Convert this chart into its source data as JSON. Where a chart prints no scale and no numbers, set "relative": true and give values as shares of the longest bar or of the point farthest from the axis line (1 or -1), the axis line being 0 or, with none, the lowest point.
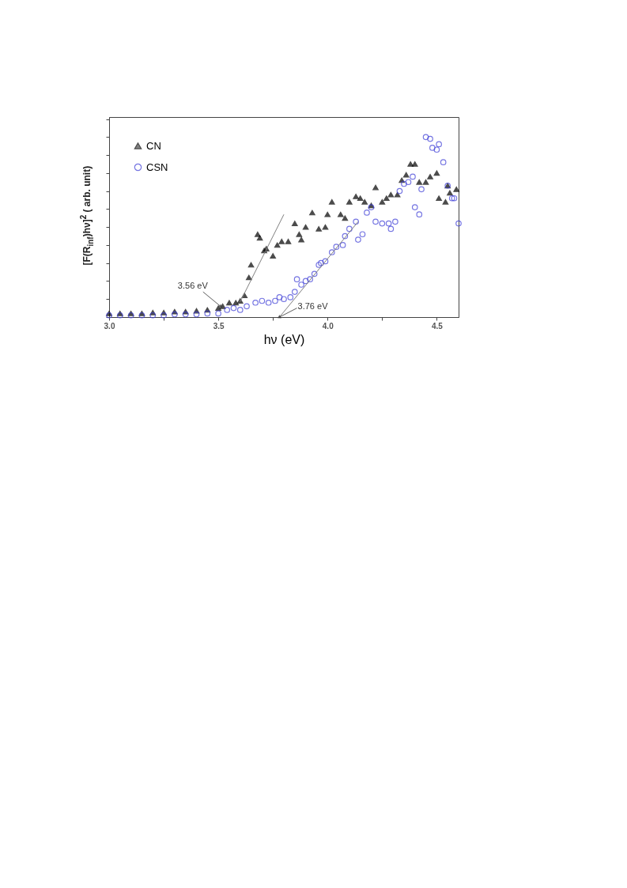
{
  "chart_data": {
    "type": "scatter",
    "relative": true,
    "xlabel": "hν (eV)",
    "ylabel": "[F(R$_{inf}$)hν]$^{2}$ ( arb. unit)",
    "xlim": [
      3.0,
      4.6
    ],
    "xticks": [
      {
        "value": 3.0,
        "label": "3.0"
      },
      {
        "value": 3.25,
        "label": null
      },
      {
        "value": 3.5,
        "label": "3.5"
      },
      {
        "value": 3.75,
        "label": null
      },
      {
        "value": 4.0,
        "label": "4.0"
      },
      {
        "value": 4.25,
        "label": null
      },
      {
        "value": 4.5,
        "label": "4.5"
      }
    ],
    "tick_labels": "x",
    "grid": false,
    "legend": "top left",
    "series": [
      {
        "name": "CN",
        "color": "#000000",
        "marker": "triangle",
        "x": [
          3.0,
          3.05,
          3.1,
          3.15,
          3.2,
          3.25,
          3.3,
          3.35,
          3.4,
          3.45,
          3.5,
          3.52,
          3.55,
          3.58,
          3.6,
          3.62,
          3.64,
          3.65,
          3.68,
          3.69,
          3.71,
          3.72,
          3.75,
          3.77,
          3.79,
          3.82,
          3.85,
          3.87,
          3.88,
          3.9,
          3.93,
          3.96,
          3.99,
          4.0,
          4.02,
          4.06,
          4.08,
          4.1,
          4.13,
          4.15,
          4.17,
          4.2,
          4.22,
          4.25,
          4.27,
          4.29,
          4.32,
          4.34,
          4.36,
          4.38,
          4.4,
          4.42,
          4.45,
          4.47,
          4.5,
          4.51,
          4.54,
          4.55,
          4.56,
          4.59
        ],
        "values": [
          0.02,
          0.02,
          0.02,
          0.02,
          0.025,
          0.025,
          0.03,
          0.03,
          0.035,
          0.04,
          0.05,
          0.06,
          0.08,
          0.08,
          0.09,
          0.12,
          0.22,
          0.29,
          0.46,
          0.44,
          0.37,
          0.38,
          0.34,
          0.4,
          0.42,
          0.42,
          0.52,
          0.46,
          0.43,
          0.5,
          0.58,
          0.49,
          0.5,
          0.57,
          0.64,
          0.57,
          0.55,
          0.64,
          0.67,
          0.66,
          0.64,
          0.62,
          0.72,
          0.64,
          0.66,
          0.68,
          0.68,
          0.76,
          0.79,
          0.85,
          0.85,
          0.75,
          0.75,
          0.78,
          0.8,
          0.66,
          0.64,
          0.73,
          0.69,
          0.71
        ]
      },
      {
        "name": "CSN",
        "color": "#3b3bd6",
        "marker": "circle",
        "x": [
          3.0,
          3.05,
          3.1,
          3.15,
          3.2,
          3.25,
          3.3,
          3.35,
          3.4,
          3.45,
          3.5,
          3.54,
          3.57,
          3.6,
          3.63,
          3.67,
          3.7,
          3.73,
          3.76,
          3.78,
          3.8,
          3.83,
          3.85,
          3.86,
          3.88,
          3.9,
          3.92,
          3.94,
          3.96,
          3.97,
          3.99,
          4.02,
          4.04,
          4.07,
          4.08,
          4.1,
          4.13,
          4.14,
          4.16,
          4.18,
          4.2,
          4.22,
          4.25,
          4.28,
          4.29,
          4.31,
          4.33,
          4.35,
          4.37,
          4.39,
          4.4,
          4.42,
          4.43,
          4.45,
          4.47,
          4.48,
          4.5,
          4.51,
          4.53,
          4.55,
          4.57,
          4.58,
          4.6
        ],
        "values": [
          0.01,
          0.01,
          0.01,
          0.01,
          0.01,
          0.01,
          0.015,
          0.015,
          0.015,
          0.02,
          0.02,
          0.04,
          0.05,
          0.04,
          0.06,
          0.08,
          0.09,
          0.08,
          0.09,
          0.11,
          0.1,
          0.11,
          0.14,
          0.21,
          0.18,
          0.2,
          0.21,
          0.24,
          0.29,
          0.3,
          0.31,
          0.36,
          0.39,
          0.4,
          0.45,
          0.49,
          0.53,
          0.43,
          0.46,
          0.58,
          0.61,
          0.53,
          0.52,
          0.52,
          0.49,
          0.53,
          0.7,
          0.74,
          0.75,
          0.78,
          0.61,
          0.57,
          0.71,
          1.0,
          0.99,
          0.94,
          0.93,
          0.96,
          0.86,
          0.73,
          0.66,
          0.66,
          0.52
        ]
      },
      {
        "type": "line",
        "color": "#808080",
        "x": [
          3.6,
          3.8
        ],
        "values": [
          0.085,
          0.57
        ]
      },
      {
        "type": "line",
        "color": "#808080",
        "x": [
          3.78,
          4.14
        ],
        "values": [
          0.0,
          0.53
        ]
      }
    ],
    "annotations": [
      {
        "text": "3.56 eV",
        "x": 3.51,
        "y": 0.06
      },
      {
        "text": "3.76 eV",
        "x": 3.78,
        "y": 0.0
      }
    ]
  }
}
